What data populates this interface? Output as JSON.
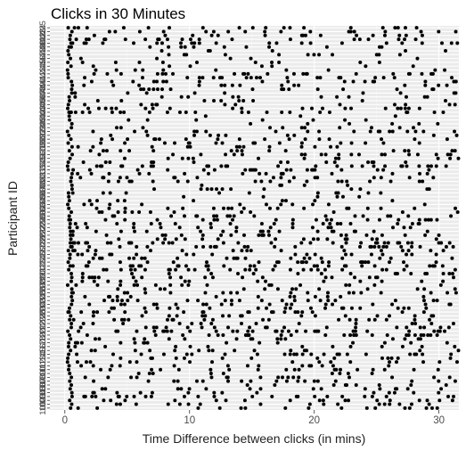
{
  "chart_data": {
    "type": "scatter",
    "title": "Clicks in 30 Minutes",
    "xlabel": "Time Difference between clicks (in mins)",
    "ylabel": "Participant ID",
    "xlim": [
      -1.2,
      31.6
    ],
    "x_ticks": [
      0,
      10,
      20,
      30
    ],
    "grid": true,
    "legend": "none",
    "colors": {
      "panel": "#ebebeb",
      "grid_major": "#ffffff",
      "points": "#000000",
      "axis_text": "#4d4d4d",
      "tick": "#333333"
    },
    "participants": [
      "101",
      "102",
      "103",
      "104",
      "105",
      "106",
      "107",
      "108",
      "109",
      "110",
      "111",
      "112",
      "113",
      "114",
      "115",
      "116",
      "117",
      "118",
      "119",
      "120",
      "121",
      "122",
      "123",
      "124",
      "125",
      "201",
      "202",
      "203",
      "204",
      "205",
      "206",
      "207",
      "208",
      "209",
      "210",
      "211",
      "212",
      "213",
      "214",
      "215",
      "216",
      "217",
      "218",
      "219",
      "220",
      "221",
      "222",
      "223",
      "224",
      "225",
      "301",
      "302",
      "303",
      "304",
      "305",
      "306",
      "307",
      "308",
      "309",
      "310",
      "311",
      "312",
      "313",
      "314",
      "315",
      "316",
      "317",
      "318",
      "319",
      "320",
      "321",
      "322",
      "323",
      "324",
      "325",
      "401",
      "402",
      "403",
      "404",
      "405",
      "406",
      "407",
      "408",
      "409",
      "410",
      "411",
      "412",
      "413",
      "414",
      "415",
      "416",
      "417",
      "418",
      "419",
      "420",
      "421",
      "422",
      "423",
      "424",
      "425"
    ],
    "point_density": [
      0.13,
      0.1,
      0.1,
      0.12,
      0.11,
      0.09,
      0.08,
      0.11,
      0.07,
      0.09,
      0.1,
      0.12,
      0.14,
      0.11,
      0.13,
      0.1,
      0.09,
      0.12,
      0.11,
      0.14,
      0.16,
      0.12,
      0.14,
      0.11,
      0.13,
      0.1,
      0.12,
      0.14,
      0.11,
      0.13,
      0.15,
      0.12,
      0.1,
      0.09,
      0.11,
      0.12,
      0.13,
      0.14,
      0.1,
      0.12,
      0.11,
      0.12,
      0.13,
      0.26,
      0.14,
      0.12,
      0.11,
      0.1,
      0.12,
      0.13,
      0.11,
      0.1,
      0.12,
      0.08,
      0.07,
      0.05,
      0.06,
      0.04,
      0.03,
      0.09,
      0.11,
      0.1,
      0.12,
      0.13,
      0.11,
      0.1,
      0.12,
      0.1,
      0.09,
      0.12,
      0.11,
      0.09,
      0.1,
      0.08,
      0.07,
      0.04,
      0.04,
      0.13,
      0.12,
      0.09,
      0.04,
      0.06,
      0.04,
      0.1,
      0.12,
      0.13,
      0.14,
      0.12,
      0.06,
      0.09,
      0.05,
      0.04,
      0.07,
      0.05,
      0.09,
      0.1,
      0.11,
      0.13,
      0.11,
      0.12
    ]
  }
}
